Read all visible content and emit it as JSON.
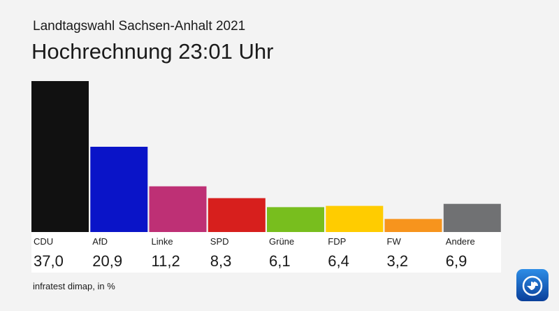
{
  "header": {
    "subtitle": "Landtagswahl Sachsen-Anhalt 2021",
    "title": "Hochrechnung 23:01 Uhr"
  },
  "footer": {
    "source": "infratest dimap, in %",
    "logo_icon": "ard-tagesschau-logo-icon"
  },
  "chart_data": {
    "type": "bar",
    "title": "Hochrechnung 23:01 Uhr",
    "subtitle": "Landtagswahl Sachsen-Anhalt 2021",
    "xlabel": "",
    "ylabel": "",
    "ylim": [
      0,
      37
    ],
    "grid": false,
    "categories": [
      "CDU",
      "AfD",
      "Linke",
      "SPD",
      "Grüne",
      "FDP",
      "FW",
      "Andere"
    ],
    "values": [
      37.0,
      20.9,
      11.2,
      8.3,
      6.1,
      6.4,
      3.2,
      6.9
    ],
    "value_labels": [
      "37,0",
      "20,9",
      "11,2",
      "8,3",
      "6,1",
      "6,4",
      "3,2",
      "6,9"
    ],
    "colors": [
      "#111111",
      "#0a14c8",
      "#be3075",
      "#d71f1d",
      "#78be1e",
      "#ffcc00",
      "#f7941d",
      "#707173"
    ]
  }
}
